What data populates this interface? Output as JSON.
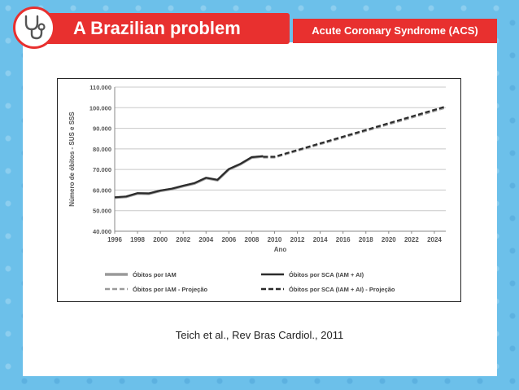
{
  "header": {
    "title": "A Brazilian problem",
    "subtitle": "Acute Coronary Syndrome (ACS)",
    "icon": "stethoscope-icon"
  },
  "citation": "Teich et al., Rev Bras Cardiol., 2011",
  "colors": {
    "accent": "#e8302f",
    "background": "#6cc0ea",
    "series_iam": "#999999",
    "series_sca": "#2b2b2b"
  },
  "chart_data": {
    "type": "line",
    "title": "",
    "xlabel": "Ano",
    "ylabel": "Número de óbitos - SUS e SSS",
    "xlim": [
      1996,
      2025
    ],
    "ylim": [
      40000,
      110000
    ],
    "x_ticks": [
      1996,
      1998,
      2000,
      2002,
      2004,
      2006,
      2008,
      2010,
      2012,
      2014,
      2016,
      2018,
      2020,
      2022,
      2024
    ],
    "y_ticks": [
      40000,
      50000,
      60000,
      70000,
      80000,
      90000,
      100000,
      110000
    ],
    "y_tick_labels": [
      "40.000",
      "50.000",
      "60.000",
      "70.000",
      "80.000",
      "90.000",
      "100.000",
      "110.000"
    ],
    "grid": true,
    "legend_position": "bottom",
    "series": [
      {
        "name": "Óbitos por IAM",
        "style": "solid",
        "color": "#999999",
        "x": [
          1996,
          1997,
          1998,
          1999,
          2000,
          2001,
          2002,
          2003,
          2004,
          2005,
          2006,
          2007,
          2008,
          2009
        ],
        "y": [
          56300,
          56700,
          58300,
          58200,
          59600,
          60500,
          61900,
          63200,
          65800,
          64800,
          70000,
          72500,
          75800,
          76300
        ]
      },
      {
        "name": "Óbitos por SCA (IAM + AI)",
        "style": "solid",
        "color": "#2b2b2b",
        "x": [
          1996,
          1997,
          1998,
          1999,
          2000,
          2001,
          2002,
          2003,
          2004,
          2005,
          2006,
          2007,
          2008,
          2009
        ],
        "y": [
          56500,
          56900,
          58500,
          58400,
          59800,
          60700,
          62100,
          63400,
          66000,
          65000,
          70200,
          72700,
          76000,
          76500
        ]
      },
      {
        "name": "Óbitos por IAM - Projeção",
        "style": "dashed",
        "color": "#999999",
        "x": [
          2009,
          2010,
          2025
        ],
        "y": [
          75800,
          75800,
          100000
        ]
      },
      {
        "name": "Óbitos por SCA (IAM + AI) - Projeção",
        "style": "dashed",
        "color": "#2b2b2b",
        "x": [
          2009,
          2010,
          2025
        ],
        "y": [
          76200,
          76200,
          100600
        ]
      }
    ]
  }
}
